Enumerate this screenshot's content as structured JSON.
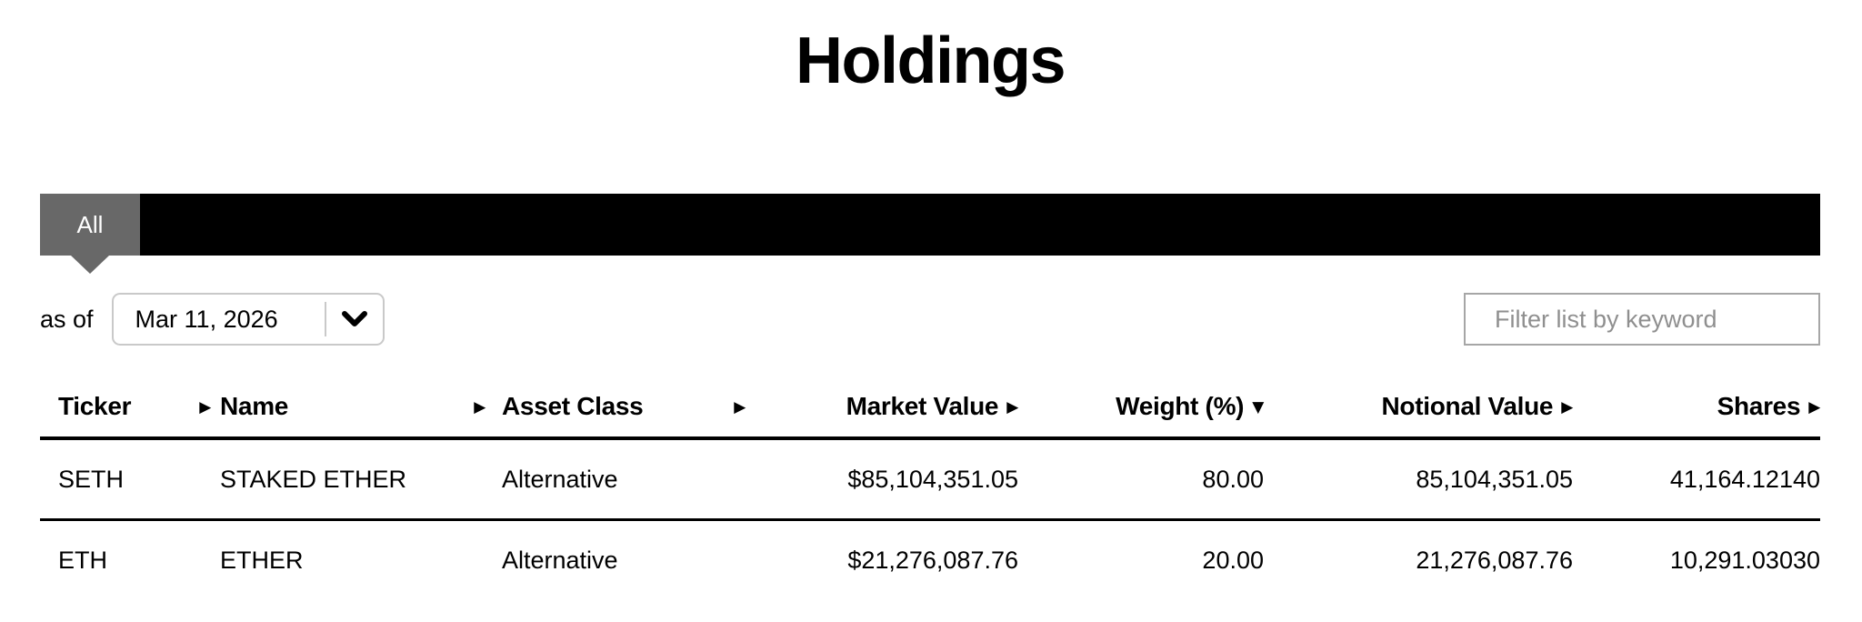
{
  "page": {
    "title": "Holdings"
  },
  "tabs": [
    {
      "label": "All",
      "active": true
    }
  ],
  "controls": {
    "as_of_label": "as of",
    "date_value": "Mar 11, 2026",
    "filter_placeholder": "Filter list by keyword"
  },
  "table": {
    "sort_icons": {
      "none": "▶",
      "desc": "▼"
    },
    "columns": [
      {
        "key": "ticker",
        "label": "Ticker",
        "align": "left",
        "sort": "none"
      },
      {
        "key": "name",
        "label": "Name",
        "align": "left",
        "sort": "none"
      },
      {
        "key": "asset_class",
        "label": "Asset Class",
        "align": "left",
        "sort": "none"
      },
      {
        "key": "market_value",
        "label": "Market Value",
        "align": "right",
        "sort": "none"
      },
      {
        "key": "weight_pct",
        "label": "Weight (%)",
        "align": "right",
        "sort": "desc"
      },
      {
        "key": "notional_value",
        "label": "Notional Value",
        "align": "right",
        "sort": "none"
      },
      {
        "key": "shares",
        "label": "Shares",
        "align": "right",
        "sort": "none"
      }
    ],
    "rows": [
      {
        "ticker": "SETH",
        "name": "STAKED ETHER",
        "asset_class": "Alternative",
        "market_value": "$85,104,351.05",
        "weight_pct": "80.00",
        "notional_value": "85,104,351.05",
        "shares": "41,164.12140"
      },
      {
        "ticker": "ETH",
        "name": "ETHER",
        "asset_class": "Alternative",
        "market_value": "$21,276,087.76",
        "weight_pct": "20.00",
        "notional_value": "21,276,087.76",
        "shares": "10,291.03030"
      }
    ]
  },
  "colors": {
    "tab_bar": "#000000",
    "tab_active": "#686868",
    "border_light": "#c9c9c9",
    "border_input": "#a6a6a6",
    "placeholder": "#8f8f8f",
    "text": "#000000"
  }
}
